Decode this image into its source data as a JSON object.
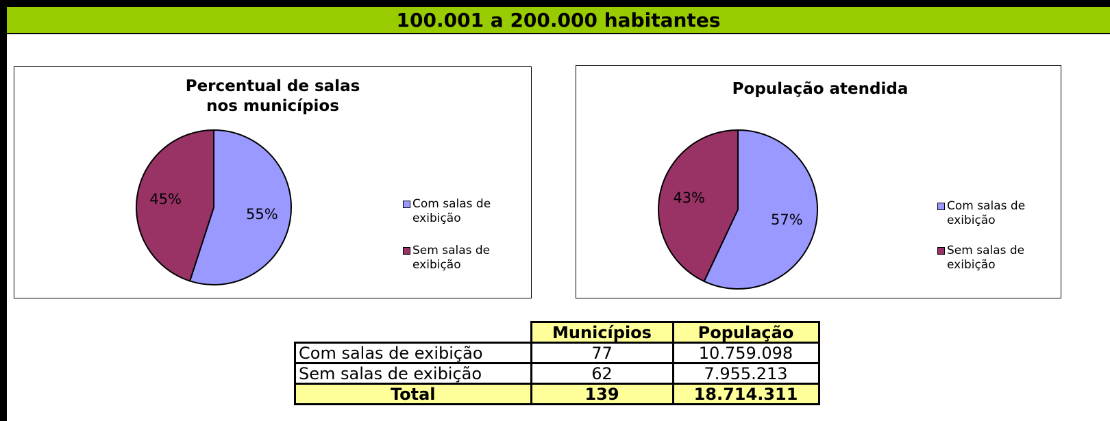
{
  "title": "100.001 a 200.000 habitantes",
  "chart_data": [
    {
      "type": "pie",
      "title": "Percentual de salas nos municípios",
      "categories": [
        "Com salas de exibição",
        "Sem salas de exibição"
      ],
      "values": [
        55,
        45
      ],
      "value_labels": [
        "55%",
        "45%"
      ],
      "colors": [
        "#9999ff",
        "#993366"
      ]
    },
    {
      "type": "pie",
      "title": "População atendida",
      "categories": [
        "Com salas de exibição",
        "Sem salas de exibição"
      ],
      "values": [
        57,
        43
      ],
      "value_labels": [
        "57%",
        "43%"
      ],
      "colors": [
        "#9999ff",
        "#993366"
      ]
    }
  ],
  "table": {
    "columns": [
      "Municípios",
      "População"
    ],
    "rows": [
      [
        "Com salas de exibição",
        "77",
        "10.759.098"
      ],
      [
        "Sem salas de exibição",
        "62",
        "7.955.213"
      ]
    ],
    "total": [
      "Total",
      "139",
      "18.714.311"
    ]
  }
}
